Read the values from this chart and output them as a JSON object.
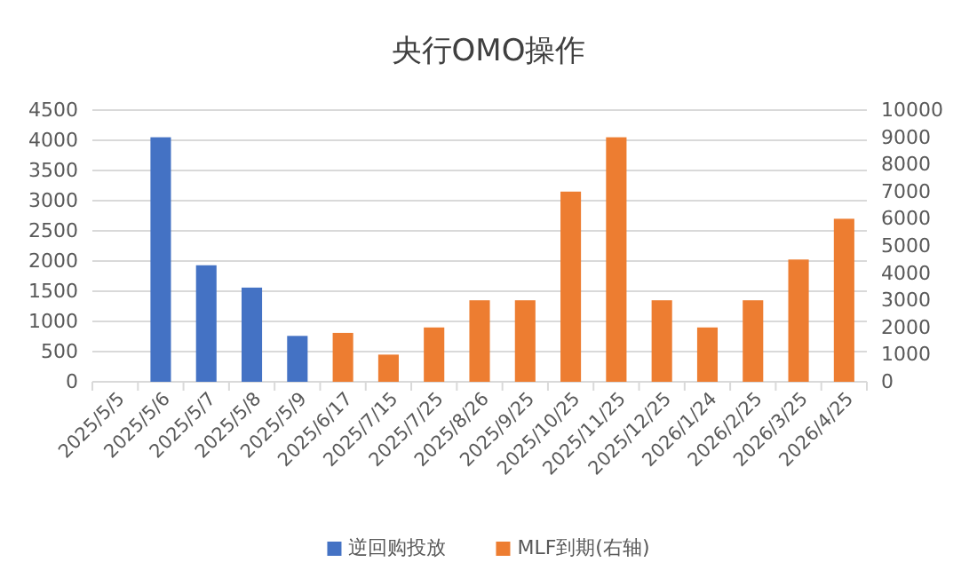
{
  "chart_data": {
    "type": "bar",
    "title": "央行OMO操作",
    "categories": [
      "2025/5/5",
      "2025/5/6",
      "2025/5/7",
      "2025/5/8",
      "2025/5/9",
      "2025/6/17",
      "2025/7/15",
      "2025/7/25",
      "2025/8/26",
      "2025/9/25",
      "2025/10/25",
      "2025/11/25",
      "2025/12/25",
      "2026/1/24",
      "2026/2/25",
      "2026/3/25",
      "2026/4/25"
    ],
    "series": [
      {
        "name": "逆回购投放",
        "color": "#4472c4",
        "values": [
          null,
          4050,
          1930,
          1560,
          760,
          null,
          null,
          null,
          null,
          null,
          null,
          null,
          null,
          null,
          null,
          null,
          null
        ]
      },
      {
        "name": "MLF到期(右轴)",
        "color": "#ed7d31",
        "axis": "y2",
        "values": [
          null,
          null,
          null,
          null,
          null,
          1800,
          1000,
          2000,
          3000,
          3000,
          7000,
          9000,
          3000,
          2000,
          3000,
          4500,
          6000
        ]
      }
    ],
    "ylim": [
      0,
      4500
    ],
    "yticks": [
      0,
      500,
      1000,
      1500,
      2000,
      2500,
      3000,
      3500,
      4000,
      4500
    ],
    "y2lim": [
      0,
      10000
    ],
    "y2ticks": [
      0,
      1000,
      2000,
      3000,
      4000,
      5000,
      6000,
      7000,
      8000,
      9000,
      10000
    ],
    "grid": "y",
    "legend": "bottom"
  }
}
